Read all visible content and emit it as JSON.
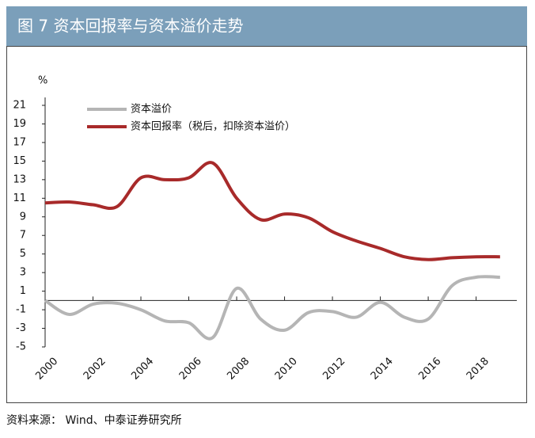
{
  "chart_data": {
    "type": "line",
    "title": "图 7  资本回报率与资本溢价走势",
    "y_unit": "%",
    "source": "资料来源： Wind、中泰证券研究所",
    "x": [
      2000,
      2001,
      2002,
      2003,
      2004,
      2005,
      2006,
      2007,
      2008,
      2009,
      2010,
      2011,
      2012,
      2013,
      2014,
      2015,
      2016,
      2017,
      2018,
      2019
    ],
    "series": [
      {
        "name": "资本溢价",
        "color": "#b5b5b5",
        "values": [
          0,
          -1.5,
          -0.4,
          -0.3,
          -1.0,
          -2.2,
          -2.4,
          -4.0,
          1.3,
          -2.0,
          -3.2,
          -1.3,
          -1.2,
          -1.8,
          -0.2,
          -1.8,
          -2.0,
          1.6,
          2.5,
          2.5
        ]
      },
      {
        "name": "资本回报率（税后，扣除资本溢价）",
        "color": "#a82a2a",
        "values": [
          10.5,
          10.6,
          10.3,
          10.1,
          13.2,
          13.0,
          13.2,
          14.8,
          11.0,
          8.7,
          9.3,
          8.9,
          7.4,
          6.4,
          5.6,
          4.7,
          4.4,
          4.6,
          4.7,
          4.7
        ]
      }
    ],
    "xlim": [
      2000,
      2019.6
    ],
    "xticks": [
      2000,
      2002,
      2004,
      2006,
      2008,
      2010,
      2012,
      2014,
      2016,
      2018
    ],
    "ylim": [
      -5,
      21
    ],
    "yticks": [
      -5,
      -3,
      -1,
      1,
      3,
      5,
      7,
      9,
      11,
      13,
      15,
      17,
      19,
      21
    ]
  }
}
